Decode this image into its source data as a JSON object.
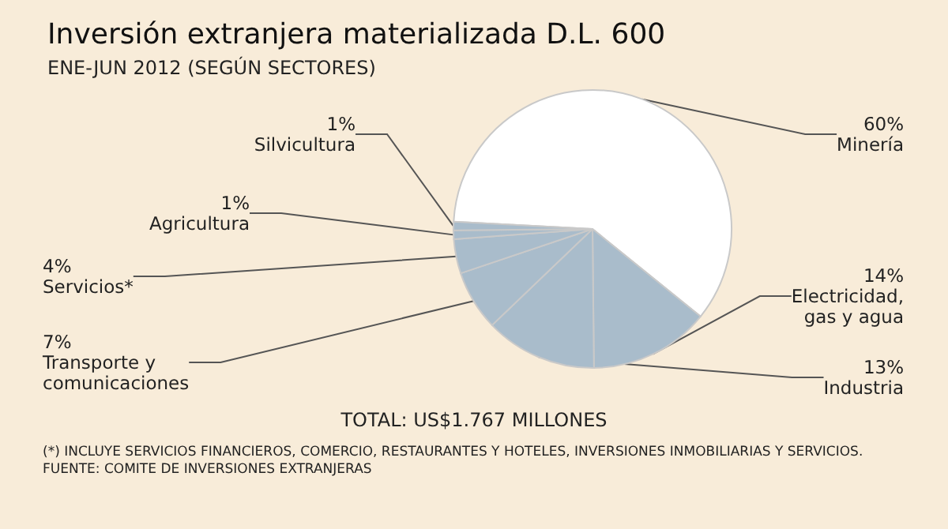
{
  "chart_data": {
    "type": "pie",
    "title": "Inversión extranjera materializada D.L. 600",
    "subtitle": "ENE-JUN 2012 (SEGÚN SECTORES)",
    "categories": [
      "Minería",
      "Electricidad, gas y agua",
      "Industria",
      "Transporte y comunicaciones",
      "Servicios*",
      "Agricultura",
      "Silvicultura"
    ],
    "values": [
      60,
      14,
      13,
      7,
      4,
      1,
      1
    ],
    "colors": [
      "#ffffff",
      "#a9bccb",
      "#a9bccb",
      "#a9bccb",
      "#a9bccb",
      "#a9bccb",
      "#a9bccb"
    ],
    "value_labels": [
      "60%",
      "14%",
      "13%",
      "7%",
      "4%",
      "1%",
      "1%"
    ],
    "legend": false,
    "annotations": [
      "TOTAL: US$1.767 MILLONES",
      "(*) INCLUYE SERVICIOS FINANCIEROS, COMERCIO, RESTAURANTES Y HOTELES, INVERSIONES INMOBILIARIAS Y SERVICIOS.",
      "FUENTE: COMITE DE INVERSIONES EXTRANJERAS"
    ]
  }
}
